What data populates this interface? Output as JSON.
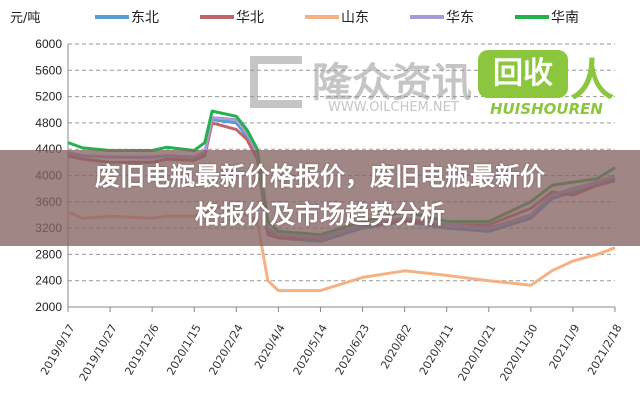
{
  "chart_data": {
    "type": "line",
    "title": "",
    "ylabel": "元/吨",
    "xlabel": "",
    "ylim": [
      2000,
      6000
    ],
    "yticks": [
      2000,
      2400,
      2800,
      3200,
      3600,
      4000,
      4400,
      4800,
      5200,
      5600,
      6000
    ],
    "xticks": [
      "2019/9/17",
      "2019/10/27",
      "2019/12/6",
      "2020/1/15",
      "2020/2/24",
      "2020/4/4",
      "2020/5/14",
      "2020/6/23",
      "2020/8/2",
      "2020/9/11",
      "2020/10/21",
      "2020/11/30",
      "2021/1/9",
      "2021/2/18"
    ],
    "grid": "horizontal dashed",
    "legend": "top",
    "x": [
      "2019/9/17",
      "2019/10/1",
      "2019/10/27",
      "2019/12/6",
      "2019/12/20",
      "2020/1/15",
      "2020/1/25",
      "2020/2/1",
      "2020/2/24",
      "2020/3/5",
      "2020/3/15",
      "2020/3/25",
      "2020/4/4",
      "2020/5/14",
      "2020/6/23",
      "2020/8/2",
      "2020/9/11",
      "2020/10/21",
      "2020/11/30",
      "2020/12/20",
      "2021/1/9",
      "2021/2/1",
      "2021/2/18"
    ],
    "series": [
      {
        "name": "东北",
        "color": "#5b9bd5",
        "values": [
          4350,
          4300,
          4280,
          4280,
          4300,
          4280,
          4350,
          4850,
          4800,
          4600,
          4300,
          3150,
          3050,
          3000,
          3200,
          3300,
          3200,
          3150,
          3350,
          3650,
          3750,
          3850,
          3950
        ]
      },
      {
        "name": "华北",
        "color": "#c0666a",
        "values": [
          4300,
          4250,
          4200,
          4200,
          4250,
          4230,
          4300,
          4800,
          4700,
          4550,
          4250,
          3100,
          3050,
          3050,
          3250,
          3300,
          3250,
          3250,
          3500,
          3750,
          3700,
          3850,
          3920
        ]
      },
      {
        "name": "山东",
        "color": "#f4b183",
        "values": [
          3450,
          3350,
          3380,
          3350,
          3380,
          3380,
          3420,
          3550,
          3450,
          3400,
          3300,
          2400,
          2250,
          2250,
          2450,
          2550,
          2480,
          2400,
          2330,
          2550,
          2700,
          2800,
          2900
        ]
      },
      {
        "name": "华东",
        "color": "#a99bd6",
        "values": [
          4350,
          4300,
          4280,
          4270,
          4300,
          4280,
          4350,
          4880,
          4850,
          4650,
          4350,
          3200,
          3100,
          3050,
          3250,
          3350,
          3250,
          3200,
          3400,
          3700,
          3800,
          3900,
          4000
        ]
      },
      {
        "name": "华南",
        "color": "#22b14c",
        "values": [
          4500,
          4420,
          4380,
          4380,
          4430,
          4380,
          4500,
          4980,
          4900,
          4700,
          4400,
          3300,
          3150,
          3100,
          3300,
          3450,
          3300,
          3300,
          3600,
          3850,
          3900,
          3950,
          4120
        ]
      }
    ]
  },
  "overlay": {
    "title_line1": "废旧电瓶最新价格报价，废旧电瓶最新价",
    "title_line2": "格报价及市场趋势分析"
  },
  "watermarks": {
    "left_cn": "隆众资讯",
    "left_url": "WWW.OILCHEM.NET",
    "right_cn": "回收",
    "right_glyph": "人",
    "right_en": "HUISHOUREN"
  }
}
